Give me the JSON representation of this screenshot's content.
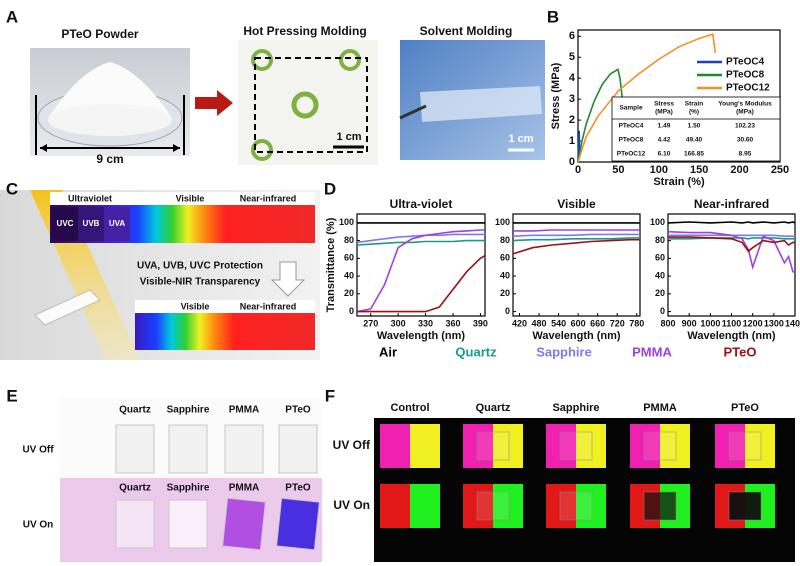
{
  "panel_labels": [
    "A",
    "B",
    "C",
    "D",
    "E",
    "F"
  ],
  "panel_a": {
    "powder": "PTeO Powder",
    "width": "9 cm",
    "hot_pressing": "Hot Pressing Molding",
    "solvent": "Solvent Molding",
    "scale_bars": [
      "1 cm",
      "1 cm"
    ]
  },
  "panel_c": {
    "top_labels": [
      "Ultraviolet",
      "Visible",
      "Near-infrared"
    ],
    "uv_bands": [
      "UVC",
      "UVB",
      "UVA"
    ],
    "caption": [
      "UVA, UVB, UVC Protection",
      "Visible-NIR Transparency"
    ],
    "bottom_labels": [
      "Visible",
      "Near-infrared"
    ]
  },
  "panel_e": {
    "rows": [
      {
        "label": "UV Off",
        "columns": [
          "Quartz",
          "Sapphire",
          "PMMA",
          "PTeO"
        ]
      },
      {
        "label": "UV On",
        "columns": [
          "Quartz",
          "Sapphire",
          "PMMA",
          "PTeO"
        ]
      }
    ]
  },
  "panel_f": {
    "columns": [
      "Control",
      "Quartz",
      "Sapphire",
      "PMMA",
      "PTeO"
    ],
    "rows": [
      "UV Off",
      "UV On"
    ]
  },
  "chart_data": [
    {
      "type": "line",
      "xlabel": "Strain (%)",
      "ylabel": "Stress (MPa)",
      "xlim": [
        0,
        250
      ],
      "xticks": [
        0,
        50,
        100,
        150,
        200,
        250
      ],
      "ylim": [
        0,
        6.3
      ],
      "yticks": [
        0,
        1,
        2,
        3,
        4,
        5,
        6
      ],
      "legend": "upper right",
      "series": [
        {
          "name": "PTeOC4",
          "color": "#1f3fbf",
          "x": [
            0,
            0.5,
            1,
            1.5,
            2
          ],
          "values": [
            0,
            0.6,
            1.1,
            1.49,
            0.4
          ]
        },
        {
          "name": "PTeOC8",
          "color": "#1e8a2e",
          "x": [
            0,
            5,
            10,
            20,
            30,
            40,
            49.4,
            52,
            55
          ],
          "values": [
            0,
            1.0,
            1.8,
            2.9,
            3.7,
            4.2,
            4.42,
            4.0,
            3.0
          ]
        },
        {
          "name": "PTeOC12",
          "color": "#f5902a",
          "x": [
            0,
            10,
            25,
            50,
            75,
            100,
            125,
            150,
            166.85,
            170
          ],
          "values": [
            0,
            1.2,
            2.2,
            3.4,
            4.2,
            4.9,
            5.5,
            5.9,
            6.1,
            5.2
          ]
        }
      ],
      "table": {
        "header": [
          [
            "Sample"
          ],
          [
            "Stress",
            "(MPa)"
          ],
          [
            "Strain",
            "(%)"
          ],
          [
            "Young's Modulus",
            "(MPa)"
          ]
        ],
        "rows": [
          [
            "PTeOC4",
            "1.49",
            "1.50",
            "102.23"
          ],
          [
            "PTeOC8",
            "4.42",
            "49.40",
            "30.60"
          ],
          [
            "PTeOC12",
            "6.10",
            "166.85",
            "8.95"
          ]
        ]
      }
    },
    {
      "type": "line",
      "title": "Ultra-violet",
      "xlabel": "Wavelength (nm)",
      "ylabel": "Transmittance (%)",
      "xlim": [
        255,
        395
      ],
      "xticks": [
        270,
        300,
        330,
        360,
        390
      ],
      "ylim": [
        -5,
        110
      ],
      "yticks": [
        0,
        20,
        40,
        60,
        80,
        100
      ],
      "x": [
        255,
        270,
        285,
        300,
        315,
        330,
        345,
        360,
        375,
        390,
        395
      ],
      "series": [
        {
          "name": "Air",
          "color": "#000000",
          "values": [
            100,
            100,
            100,
            100,
            100,
            100,
            100,
            100,
            100,
            100,
            100
          ]
        },
        {
          "name": "Quartz",
          "color": "#1a9a8a",
          "values": [
            75,
            76,
            77,
            78,
            78,
            79,
            79,
            79,
            80,
            80,
            80
          ]
        },
        {
          "name": "Sapphire",
          "color": "#7b7bf0",
          "values": [
            78,
            80,
            82,
            84,
            85,
            86,
            86,
            87,
            87,
            87,
            87
          ]
        },
        {
          "name": "PMMA",
          "color": "#a040e0",
          "values": [
            0,
            3,
            30,
            72,
            82,
            86,
            88,
            90,
            91,
            92,
            92
          ]
        },
        {
          "name": "PTeO",
          "color": "#a01010",
          "values": [
            0,
            0,
            0,
            0,
            0,
            0,
            5,
            25,
            45,
            60,
            63
          ]
        }
      ]
    },
    {
      "type": "line",
      "title": "Visible",
      "xlabel": "Wavelength (nm)",
      "xlim": [
        400,
        790
      ],
      "xticks": [
        420,
        480,
        540,
        600,
        660,
        720,
        780
      ],
      "ylim": [
        -5,
        110
      ],
      "yticks": [
        0,
        20,
        40,
        60,
        80,
        100
      ],
      "x": [
        400,
        460,
        520,
        580,
        640,
        700,
        760,
        790
      ],
      "series": [
        {
          "color": "#000000",
          "values": [
            100,
            100,
            100,
            100,
            100,
            100,
            100,
            100
          ]
        },
        {
          "color": "#1a9a8a",
          "values": [
            80,
            81,
            81,
            82,
            82,
            82,
            83,
            83
          ]
        },
        {
          "color": "#7b7bf0",
          "values": [
            85,
            86,
            86,
            86,
            87,
            87,
            87,
            87
          ]
        },
        {
          "color": "#a040e0",
          "values": [
            91,
            91,
            92,
            92,
            92,
            92,
            92,
            92
          ]
        },
        {
          "color": "#a01010",
          "values": [
            65,
            72,
            75,
            77,
            79,
            80,
            81,
            81
          ]
        }
      ]
    },
    {
      "type": "line",
      "title": "Near-infrared",
      "xlabel": "Wavelength (nm)",
      "xlim": [
        800,
        1400
      ],
      "xticks": [
        800,
        900,
        1000,
        1100,
        1200,
        1300,
        1400
      ],
      "ylim": [
        -5,
        110
      ],
      "yticks": [
        0,
        20,
        40,
        60,
        80,
        100
      ],
      "x": [
        800,
        900,
        1000,
        1100,
        1150,
        1180,
        1200,
        1250,
        1300,
        1350,
        1370,
        1390,
        1400
      ],
      "series": [
        {
          "color": "#000000",
          "values": [
            100,
            101,
            100,
            101,
            100,
            101,
            100,
            101,
            100,
            101,
            100,
            101,
            100
          ]
        },
        {
          "color": "#1a9a8a",
          "values": [
            82,
            82,
            83,
            83,
            83,
            82,
            83,
            83,
            83,
            82,
            82,
            82,
            82
          ]
        },
        {
          "color": "#7b7bf0",
          "values": [
            86,
            86,
            86,
            86,
            86,
            86,
            86,
            86,
            86,
            85,
            85,
            85,
            85
          ]
        },
        {
          "color": "#a040e0",
          "values": [
            90,
            89,
            89,
            86,
            82,
            70,
            50,
            85,
            80,
            55,
            62,
            45,
            44
          ]
        },
        {
          "color": "#a01010",
          "values": [
            84,
            84,
            83,
            82,
            78,
            68,
            72,
            80,
            78,
            80,
            75,
            78,
            78
          ]
        }
      ]
    }
  ]
}
